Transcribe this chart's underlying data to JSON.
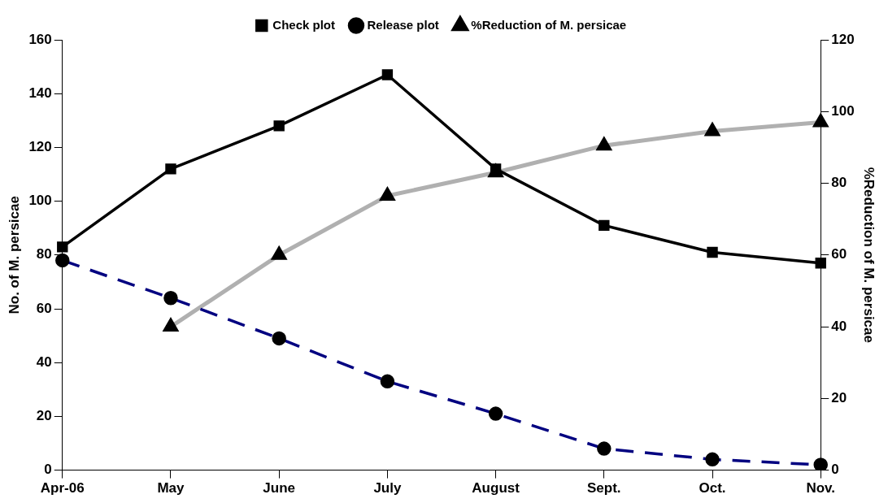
{
  "chart_data": {
    "type": "line",
    "categories": [
      "Apr-06",
      "May",
      "June",
      "July",
      "August",
      "Sept.",
      "Oct.",
      "Nov."
    ],
    "ylabel": "No. of M. persicae",
    "y2label": "%Reduction of M. persicae",
    "series": [
      {
        "name": "Check plot",
        "color": "#000000",
        "marker": "square",
        "line_style": "solid",
        "values": [
          83,
          112,
          128,
          147,
          112,
          91,
          81,
          77
        ]
      },
      {
        "name": "Release plot",
        "color": "#000080",
        "marker": "circle",
        "line_style": "dashed",
        "values": [
          78,
          64,
          49,
          33,
          21,
          8,
          4,
          2
        ]
      },
      {
        "name": "%Reduction of M. persicae",
        "color": "#b0b0b0",
        "marker": "triangle",
        "line_style": "solid",
        "axis": "y2",
        "values": [
          null,
          40,
          60,
          76.5,
          83,
          90.5,
          94.5,
          97
        ]
      }
    ],
    "ylim": [
      0,
      160
    ],
    "yticks": [
      0,
      20,
      40,
      60,
      80,
      100,
      120,
      140,
      160
    ],
    "y2lim": [
      0,
      120
    ],
    "y2ticks": [
      0,
      20,
      40,
      60,
      80,
      100,
      120
    ],
    "grid": false,
    "legend": "top"
  }
}
